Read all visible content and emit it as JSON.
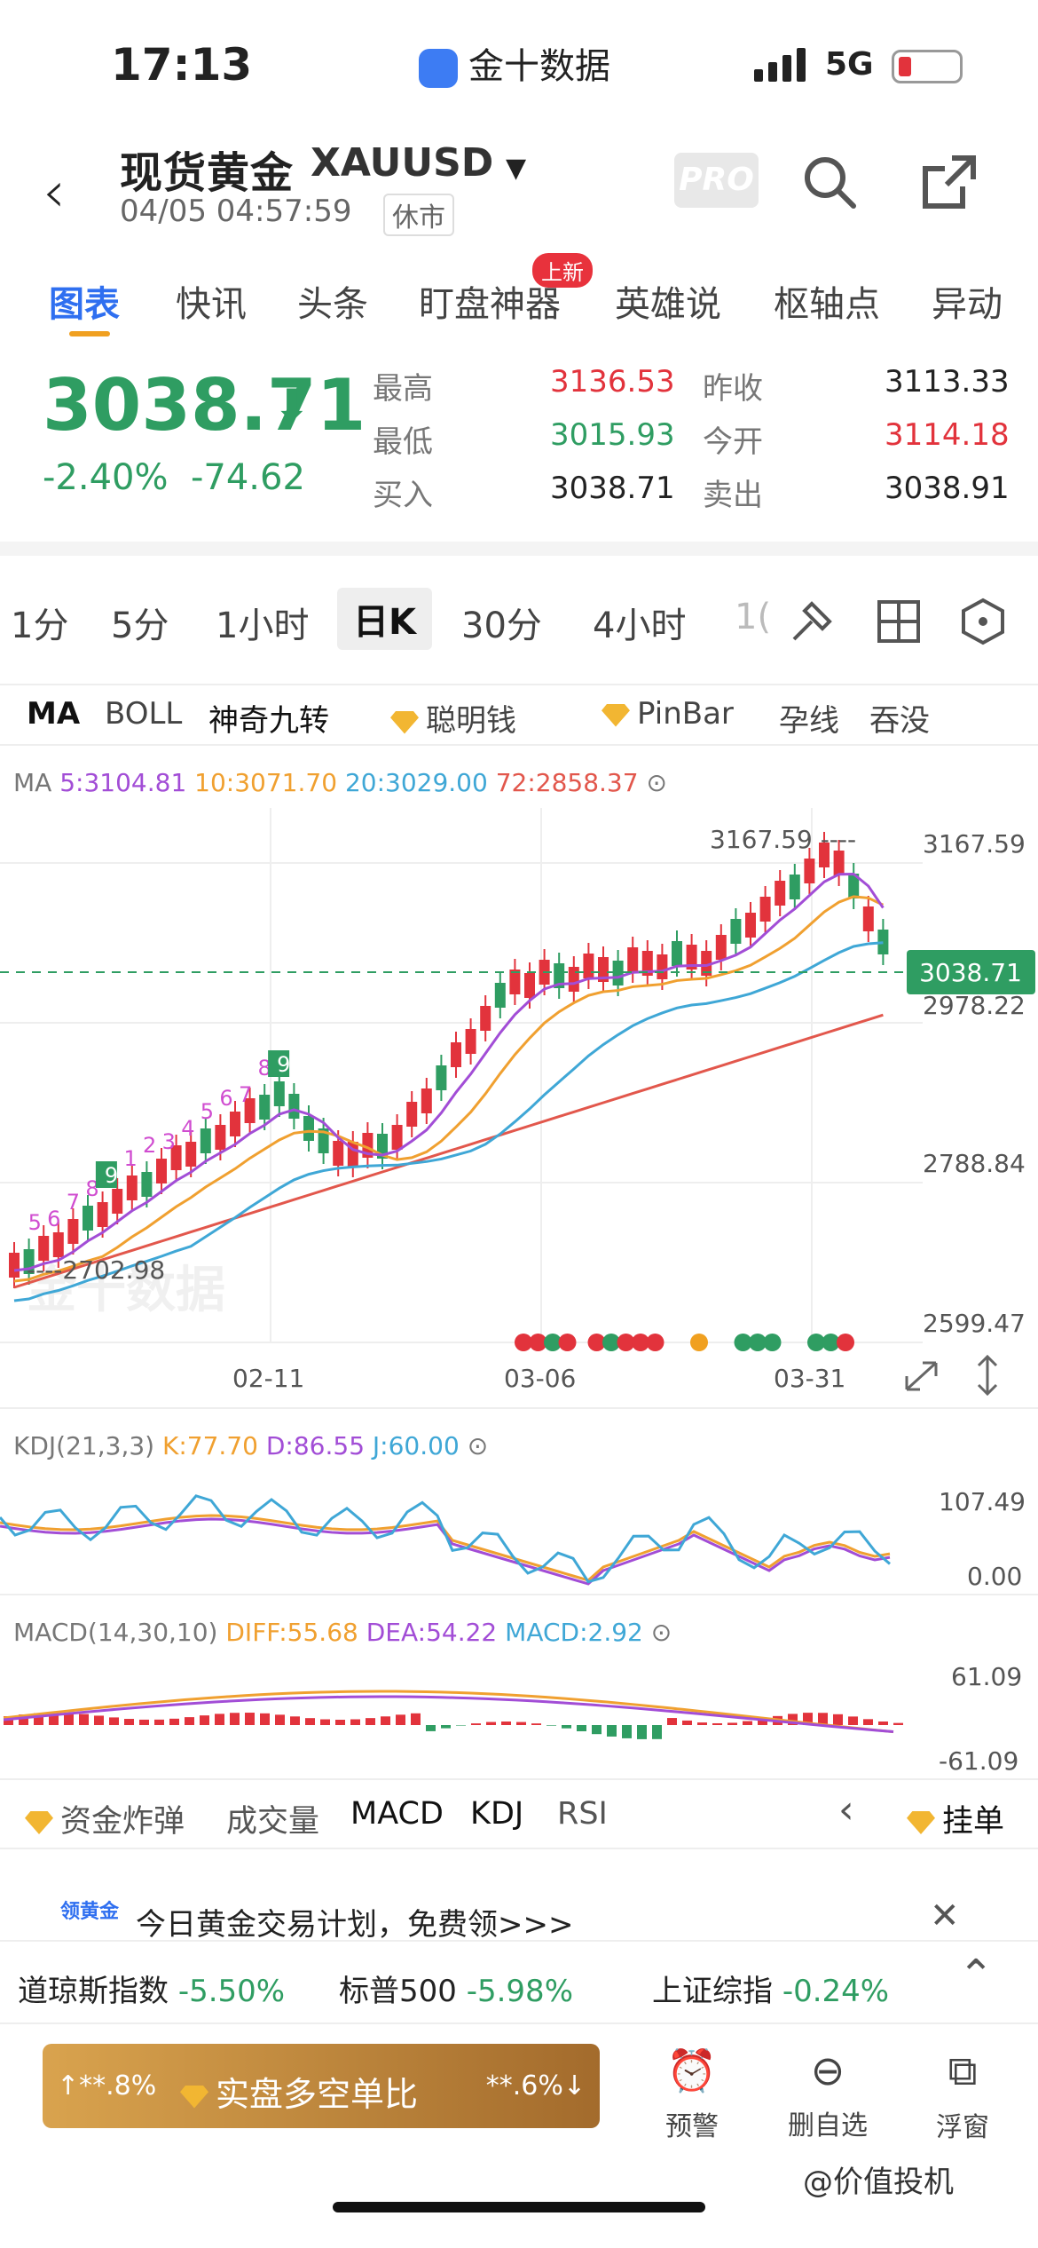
{
  "status": {
    "time": "17:13",
    "carrier": "金十数据",
    "network": "5G"
  },
  "header": {
    "title": "现货黄金",
    "symbol": "XAUUSD",
    "timestamp": "04/05 04:57:59",
    "market_state": "休市",
    "pro": "PRO"
  },
  "tabs": [
    {
      "label": "图表"
    },
    {
      "label": "快讯"
    },
    {
      "label": "头条"
    },
    {
      "label": "盯盘神器"
    },
    {
      "label": "英雄说"
    },
    {
      "label": "枢轴点"
    },
    {
      "label": "异动"
    }
  ],
  "new_badge": "上新",
  "quote": {
    "price": "3038.71",
    "change_pct": "-2.40%",
    "change": "-74.62",
    "high_label": "最高",
    "high": "3136.53",
    "low_label": "最低",
    "low": "3015.93",
    "buy_label": "买入",
    "buy": "3038.71",
    "prev_label": "昨收",
    "prev": "3113.33",
    "open_label": "今开",
    "open": "3114.18",
    "sell_label": "卖出",
    "sell": "3038.91"
  },
  "periods": [
    {
      "label": "1分"
    },
    {
      "label": "5分"
    },
    {
      "label": "1小时"
    },
    {
      "label": "日K"
    },
    {
      "label": "30分"
    },
    {
      "label": "4小时"
    },
    {
      "label": "1("
    }
  ],
  "indicators": [
    "MA",
    "BOLL",
    "神奇九转",
    "聪明钱",
    "PinBar",
    "孕线",
    "吞没"
  ],
  "ma_legend": {
    "prefix": "MA",
    "ma5": "5:3104.81",
    "ma10": "10:3071.70",
    "ma20": "20:3029.00",
    "ma72": "72:2858.37"
  },
  "main_chart": {
    "y_labels": [
      "3167.59",
      "2978.22",
      "2788.84",
      "2599.47"
    ],
    "last_price": "3038.71",
    "max_label": "3167.59 ----",
    "min_label": "----2702.98",
    "x_labels": [
      "02-11",
      "03-06",
      "03-31"
    ],
    "watermark": "金十数据",
    "nine_markers": [
      "5",
      "6",
      "7",
      "8",
      "9",
      "1",
      "2",
      "3",
      "4",
      "5",
      "6",
      "7",
      "8",
      "9"
    ]
  },
  "kdj": {
    "label": "KDJ(21,3,3)",
    "k": "K:77.70",
    "d": "D:86.55",
    "j": "J:60.00",
    "y_labels": [
      "107.49",
      "0.00"
    ]
  },
  "macd": {
    "label": "MACD(14,30,10)",
    "diff": "DIFF:55.68",
    "dea": "DEA:54.22",
    "macd": "MACD:2.92",
    "y_labels": [
      "61.09",
      "-61.09"
    ]
  },
  "bottom_tabs": [
    {
      "label": "资金炸弹"
    },
    {
      "label": "成交量"
    },
    {
      "label": "MACD"
    },
    {
      "label": "KDJ"
    },
    {
      "label": "RSI"
    }
  ],
  "hang_order": "挂单",
  "promo": {
    "badge": "领黄金",
    "text": "今日黄金交易计划，免费领>>>"
  },
  "tickers": [
    {
      "name": "道琼斯指数",
      "value": "-5.50%"
    },
    {
      "name": "标普500",
      "value": "-5.98%"
    },
    {
      "name": "上证综指",
      "value": "-0.24%"
    }
  ],
  "footer": {
    "ratio_left": "↑**.8%",
    "ratio_title": "实盘多空单比",
    "ratio_right": "**.6%↓",
    "alert": "预警",
    "remove_watch": "删自选",
    "float_window": "浮窗"
  },
  "watermark_user": "@价值投机",
  "colors": {
    "up": "#e2333c",
    "down": "#2f9d62",
    "ma5": "#a24dd6",
    "ma10": "#f0a030",
    "ma20": "#3fa7d6",
    "ma72": "#e2574c",
    "accent": "#2f6ff0"
  }
}
